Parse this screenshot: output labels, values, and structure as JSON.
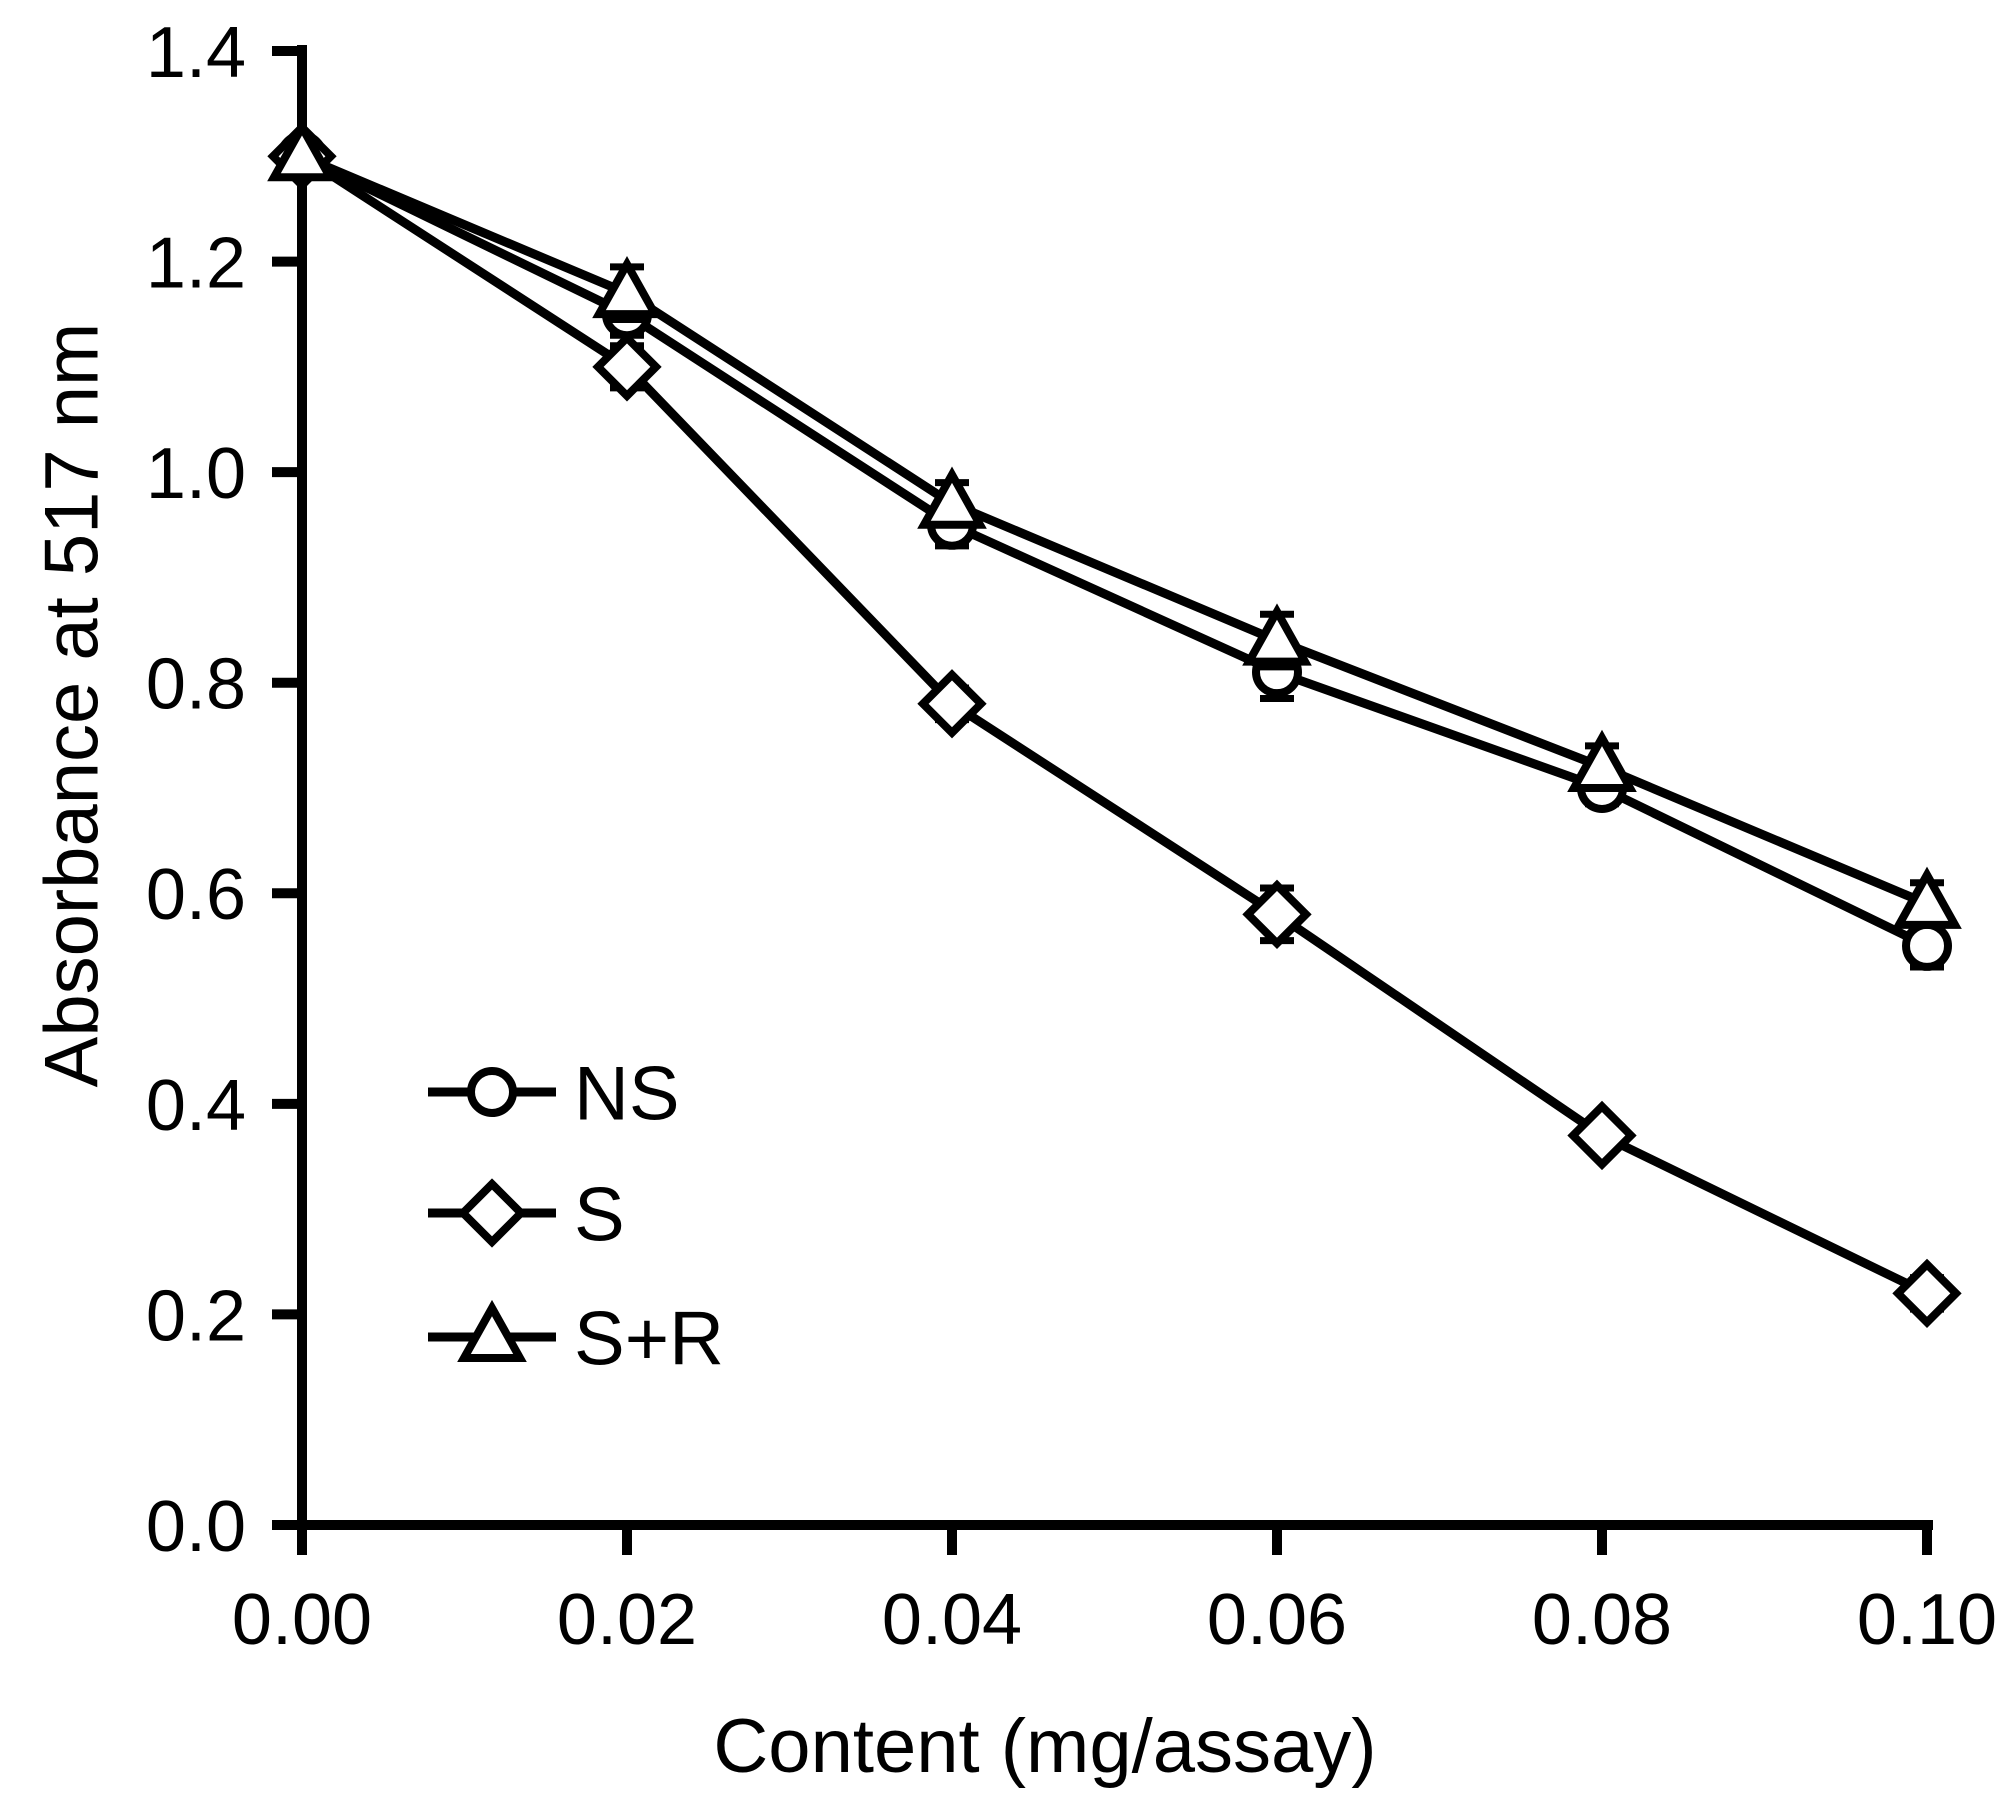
{
  "figure": {
    "background": "#ffffff",
    "ink_color": "#000000"
  },
  "chart_data": {
    "type": "line",
    "title": "",
    "xlabel": "Content (mg/assay)",
    "ylabel": "Absorbance at 517 nm",
    "xlim": [
      0.0,
      0.1
    ],
    "ylim": [
      0.0,
      1.4
    ],
    "grid": false,
    "legend_position": "inside-lower-left",
    "x": [
      0.0,
      0.02,
      0.04,
      0.06,
      0.08,
      0.1
    ],
    "x_tick_labels": [
      "0.00",
      "0.02",
      "0.04",
      "0.06",
      "0.08",
      "0.10"
    ],
    "y_ticks": [
      0.0,
      0.2,
      0.4,
      0.6,
      0.8,
      1.0,
      1.2,
      1.4
    ],
    "y_tick_labels": [
      "0.0",
      "0.2",
      "0.4",
      "0.6",
      "0.8",
      "1.0",
      "1.2",
      "1.4"
    ],
    "series": [
      {
        "name": "NS",
        "marker": "circle",
        "color": "#000000",
        "values": [
          1.3,
          1.15,
          0.95,
          0.81,
          0.7,
          0.55
        ],
        "errors": [
          0.01,
          0.02,
          0.02,
          0.025,
          0.015,
          0.02
        ]
      },
      {
        "name": "S",
        "marker": "diamond",
        "color": "#000000",
        "values": [
          1.3,
          1.1,
          0.78,
          0.58,
          0.37,
          0.22
        ],
        "errors": [
          0.01,
          0.02,
          0.015,
          0.025,
          0.012,
          0.015
        ]
      },
      {
        "name": "S+R",
        "marker": "triangle",
        "color": "#000000",
        "values": [
          1.3,
          1.17,
          0.97,
          0.84,
          0.72,
          0.59
        ],
        "errors": [
          0.01,
          0.025,
          0.02,
          0.025,
          0.02,
          0.02
        ]
      }
    ]
  }
}
